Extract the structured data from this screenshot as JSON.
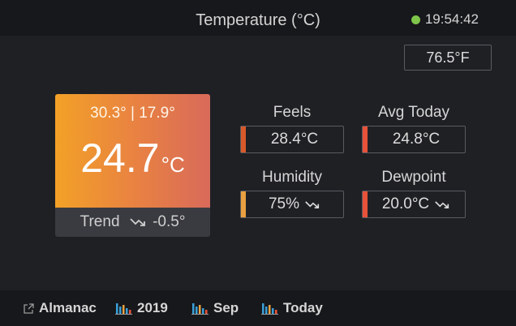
{
  "header": {
    "title": "Temperature (°C)",
    "time": "19:54:42",
    "status_color": "#7ec54a"
  },
  "fahrenheit": "76.5°F",
  "main_tile": {
    "hilo": "30.3° | 17.9°",
    "value": "24.7",
    "unit": "°C",
    "trend_label": "Trend",
    "trend_value": "-0.5°"
  },
  "stats": {
    "feels": {
      "label": "Feels",
      "value": "28.4°C",
      "color": "#d85a2a"
    },
    "avg_today": {
      "label": "Avg Today",
      "value": "24.8°C",
      "color": "#e8523a"
    },
    "humidity": {
      "label": "Humidity",
      "value": "75%",
      "color": "#e8a040"
    },
    "dewpoint": {
      "label": "Dewpoint",
      "value": "20.0°C",
      "color": "#e8523a"
    }
  },
  "footer": {
    "almanac": "Almanac",
    "year": "2019",
    "month": "Sep",
    "today": "Today"
  }
}
